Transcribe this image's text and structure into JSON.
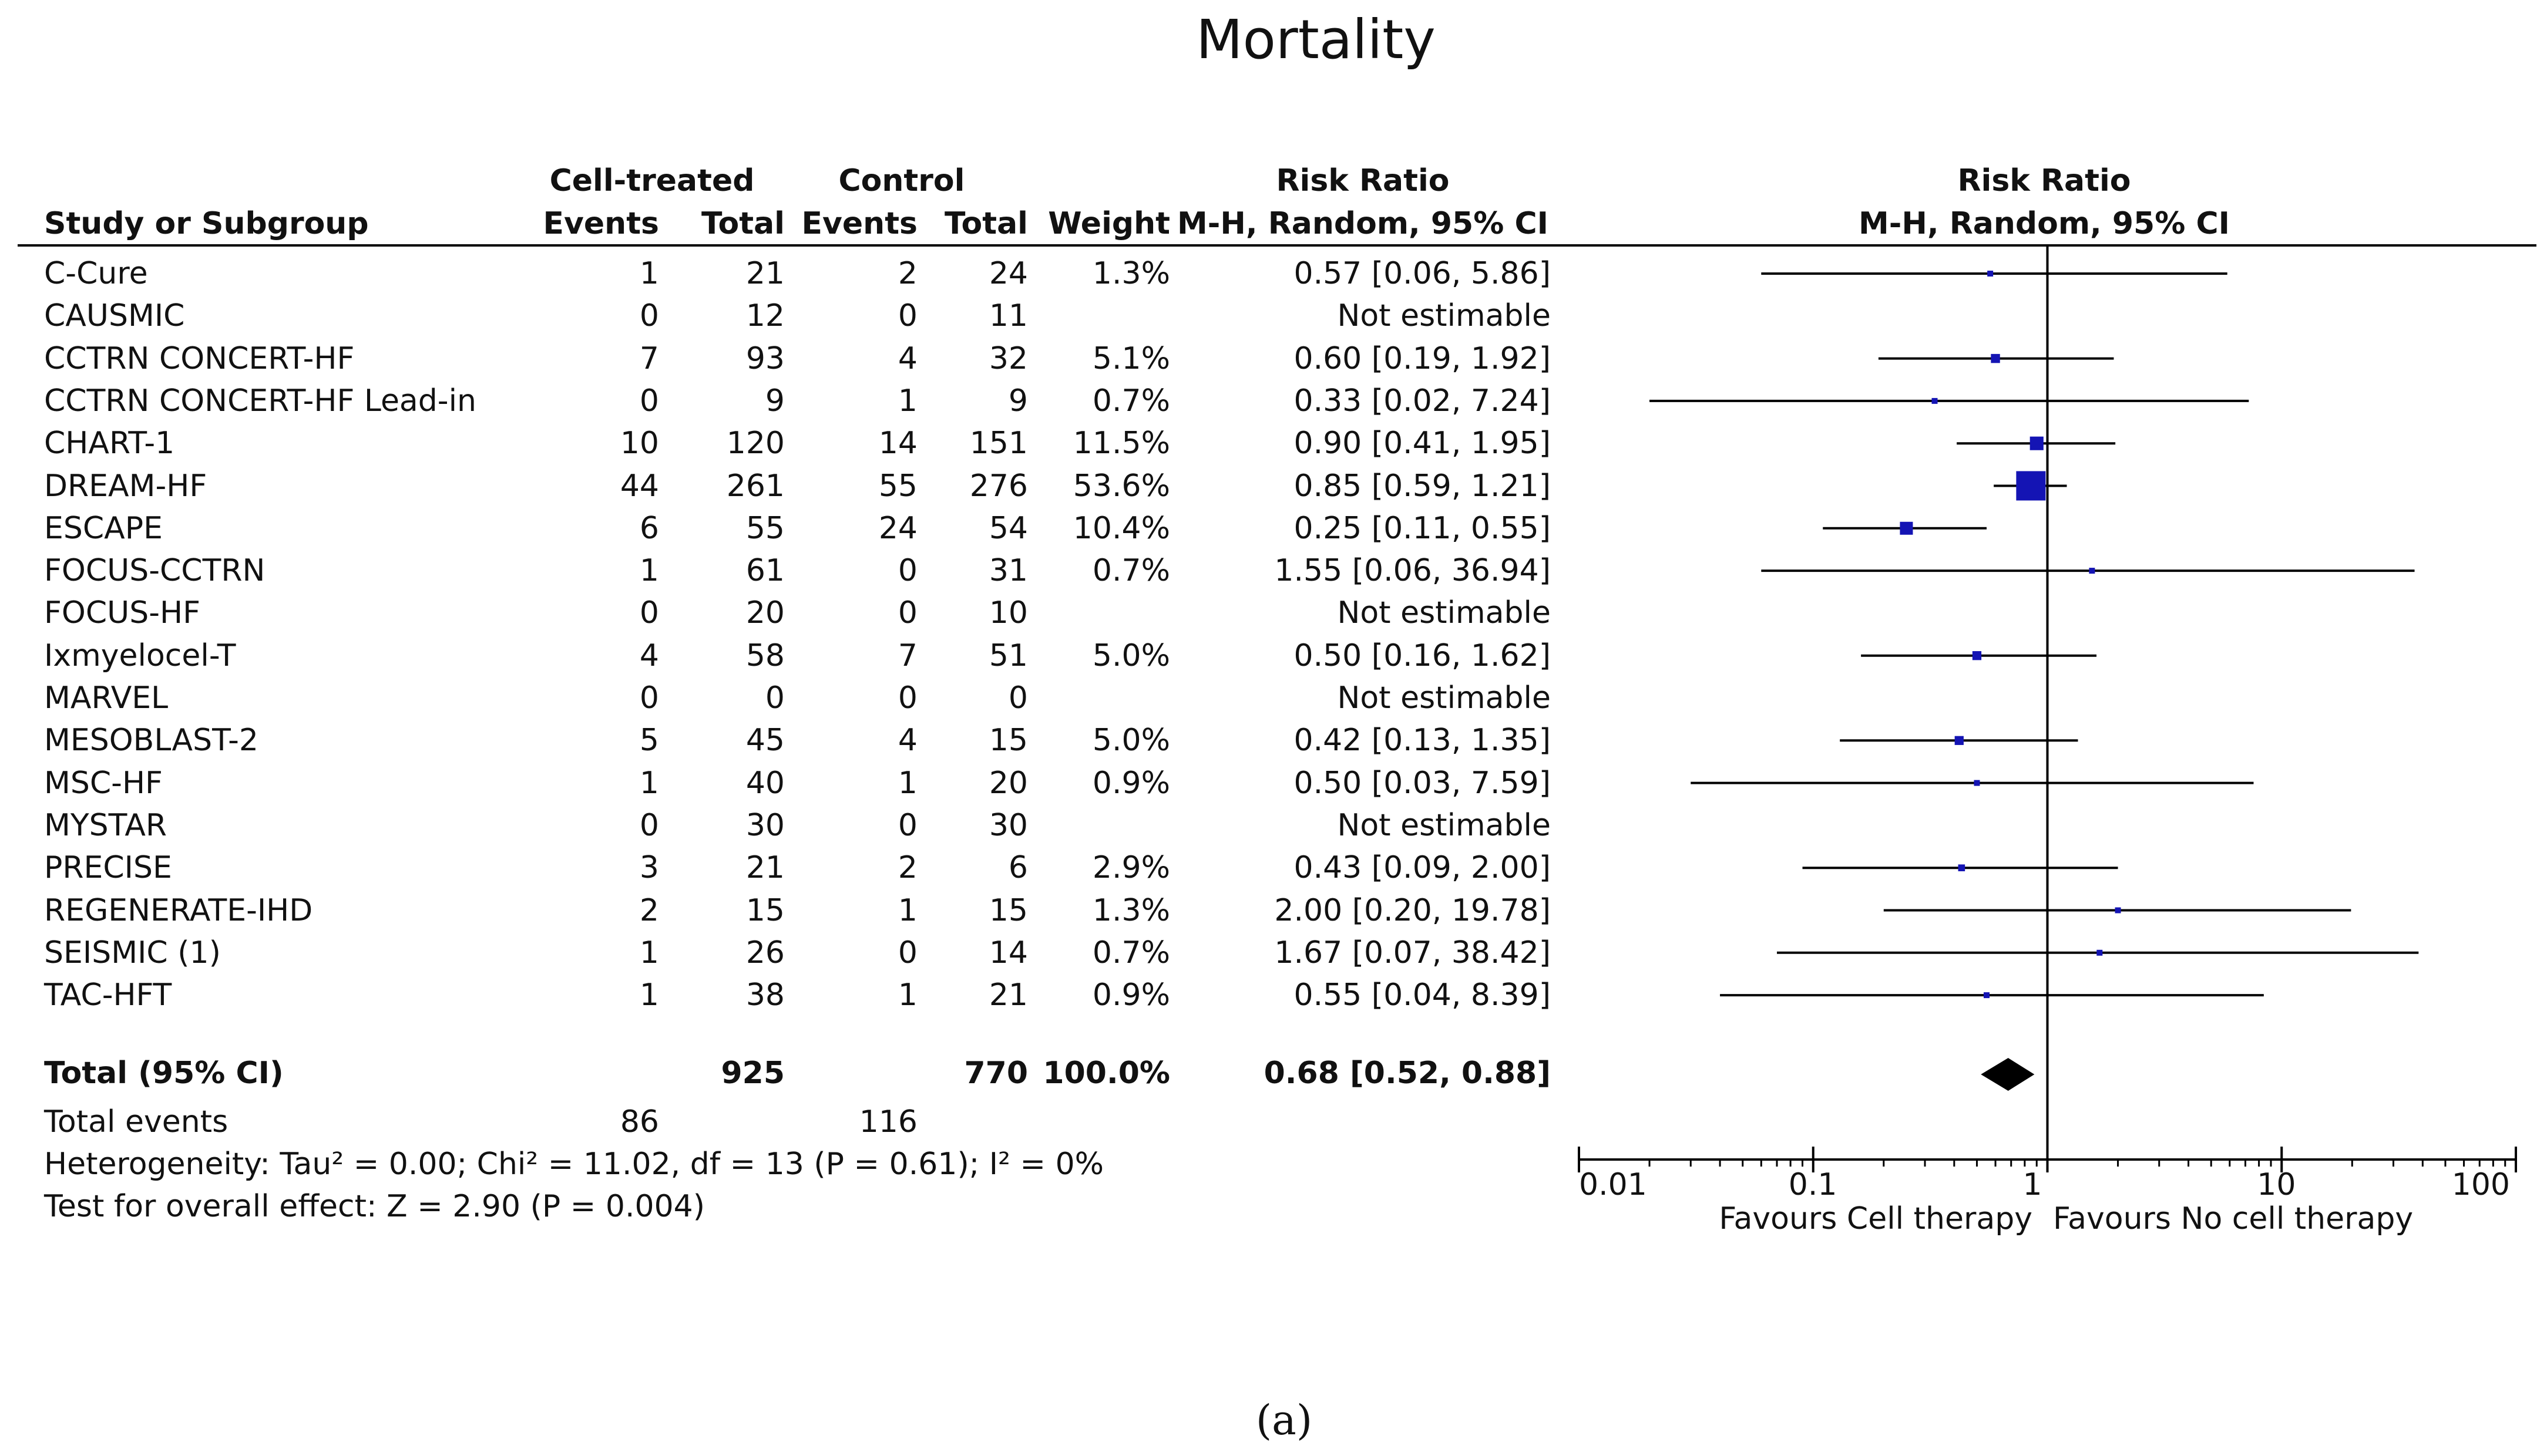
{
  "chart_data": {
    "type": "forest",
    "title": "Mortality",
    "caption": "(a)",
    "headers": {
      "study": "Study or Subgroup",
      "cell_group": "Cell-treated",
      "control_group": "Control",
      "events": "Events",
      "total": "Total",
      "weight": "Weight",
      "rr_title": "Risk Ratio",
      "rr_method": "M-H, Random, 95% CI",
      "plot_title": "Risk Ratio",
      "plot_method": "M-H, Random, 95% CI"
    },
    "studies": [
      {
        "name": "C-Cure",
        "e1": "1",
        "n1": "21",
        "e2": "2",
        "n2": "24",
        "weight": "1.3%",
        "ci": "0.57 [0.06, 5.86]",
        "rr": 0.57,
        "lo": 0.06,
        "hi": 5.86,
        "w": 1.3
      },
      {
        "name": "CAUSMIC",
        "e1": "0",
        "n1": "12",
        "e2": "0",
        "n2": "11",
        "weight": "",
        "ci": "Not estimable",
        "rr": null,
        "lo": null,
        "hi": null,
        "w": 0
      },
      {
        "name": "CCTRN CONCERT-HF",
        "e1": "7",
        "n1": "93",
        "e2": "4",
        "n2": "32",
        "weight": "5.1%",
        "ci": "0.60 [0.19, 1.92]",
        "rr": 0.6,
        "lo": 0.19,
        "hi": 1.92,
        "w": 5.1
      },
      {
        "name": "CCTRN CONCERT-HF Lead-in",
        "e1": "0",
        "n1": "9",
        "e2": "1",
        "n2": "9",
        "weight": "0.7%",
        "ci": "0.33 [0.02, 7.24]",
        "rr": 0.33,
        "lo": 0.02,
        "hi": 7.24,
        "w": 0.7
      },
      {
        "name": "CHART-1",
        "e1": "10",
        "n1": "120",
        "e2": "14",
        "n2": "151",
        "weight": "11.5%",
        "ci": "0.90 [0.41, 1.95]",
        "rr": 0.9,
        "lo": 0.41,
        "hi": 1.95,
        "w": 11.5
      },
      {
        "name": "DREAM-HF",
        "e1": "44",
        "n1": "261",
        "e2": "55",
        "n2": "276",
        "weight": "53.6%",
        "ci": "0.85 [0.59, 1.21]",
        "rr": 0.85,
        "lo": 0.59,
        "hi": 1.21,
        "w": 53.6
      },
      {
        "name": "ESCAPE",
        "e1": "6",
        "n1": "55",
        "e2": "24",
        "n2": "54",
        "weight": "10.4%",
        "ci": "0.25 [0.11, 0.55]",
        "rr": 0.25,
        "lo": 0.11,
        "hi": 0.55,
        "w": 10.4
      },
      {
        "name": "FOCUS-CCTRN",
        "e1": "1",
        "n1": "61",
        "e2": "0",
        "n2": "31",
        "weight": "0.7%",
        "ci": "1.55 [0.06, 36.94]",
        "rr": 1.55,
        "lo": 0.06,
        "hi": 36.94,
        "w": 0.7
      },
      {
        "name": "FOCUS-HF",
        "e1": "0",
        "n1": "20",
        "e2": "0",
        "n2": "10",
        "weight": "",
        "ci": "Not estimable",
        "rr": null,
        "lo": null,
        "hi": null,
        "w": 0
      },
      {
        "name": "Ixmyelocel-T",
        "e1": "4",
        "n1": "58",
        "e2": "7",
        "n2": "51",
        "weight": "5.0%",
        "ci": "0.50 [0.16, 1.62]",
        "rr": 0.5,
        "lo": 0.16,
        "hi": 1.62,
        "w": 5.0
      },
      {
        "name": "MARVEL",
        "e1": "0",
        "n1": "0",
        "e2": "0",
        "n2": "0",
        "weight": "",
        "ci": "Not estimable",
        "rr": null,
        "lo": null,
        "hi": null,
        "w": 0
      },
      {
        "name": "MESOBLAST-2",
        "e1": "5",
        "n1": "45",
        "e2": "4",
        "n2": "15",
        "weight": "5.0%",
        "ci": "0.42 [0.13, 1.35]",
        "rr": 0.42,
        "lo": 0.13,
        "hi": 1.35,
        "w": 5.0
      },
      {
        "name": "MSC-HF",
        "e1": "1",
        "n1": "40",
        "e2": "1",
        "n2": "20",
        "weight": "0.9%",
        "ci": "0.50 [0.03, 7.59]",
        "rr": 0.5,
        "lo": 0.03,
        "hi": 7.59,
        "w": 0.9
      },
      {
        "name": "MYSTAR",
        "e1": "0",
        "n1": "30",
        "e2": "0",
        "n2": "30",
        "weight": "",
        "ci": "Not estimable",
        "rr": null,
        "lo": null,
        "hi": null,
        "w": 0
      },
      {
        "name": "PRECISE",
        "e1": "3",
        "n1": "21",
        "e2": "2",
        "n2": "6",
        "weight": "2.9%",
        "ci": "0.43 [0.09, 2.00]",
        "rr": 0.43,
        "lo": 0.09,
        "hi": 2.0,
        "w": 2.9
      },
      {
        "name": "REGENERATE-IHD",
        "e1": "2",
        "n1": "15",
        "e2": "1",
        "n2": "15",
        "weight": "1.3%",
        "ci": "2.00 [0.20, 19.78]",
        "rr": 2.0,
        "lo": 0.2,
        "hi": 19.78,
        "w": 1.3
      },
      {
        "name": "SEISMIC (1)",
        "e1": "1",
        "n1": "26",
        "e2": "0",
        "n2": "14",
        "weight": "0.7%",
        "ci": "1.67 [0.07, 38.42]",
        "rr": 1.67,
        "lo": 0.07,
        "hi": 38.42,
        "w": 0.7
      },
      {
        "name": "TAC-HFT",
        "e1": "1",
        "n1": "38",
        "e2": "1",
        "n2": "21",
        "weight": "0.9%",
        "ci": "0.55 [0.04, 8.39]",
        "rr": 0.55,
        "lo": 0.04,
        "hi": 8.39,
        "w": 0.9
      }
    ],
    "total": {
      "label": "Total (95% CI)",
      "n1": "925",
      "n2": "770",
      "weight": "100.0%",
      "ci": "0.68 [0.52, 0.88]",
      "rr": 0.68,
      "lo": 0.52,
      "hi": 0.88
    },
    "total_events": {
      "label": "Total events",
      "e1": "86",
      "e2": "116"
    },
    "heterogeneity": "Heterogeneity: Tau² = 0.00; Chi² = 11.02, df = 13 (P = 0.61); I² = 0%",
    "overall_effect": "Test for overall effect: Z = 2.90 (P = 0.004)",
    "x_axis": {
      "scale": "log",
      "range": [
        0.01,
        100
      ],
      "ticks": [
        "0.01",
        "0.1",
        "1",
        "10",
        "100"
      ],
      "tick_values": [
        0.01,
        0.1,
        1,
        10,
        100
      ]
    },
    "favours_left": "Favours Cell therapy",
    "favours_right": "Favours No cell therapy",
    "colors": {
      "marker": "#1414b4",
      "line": "#000000",
      "diamond": "#000000"
    }
  }
}
